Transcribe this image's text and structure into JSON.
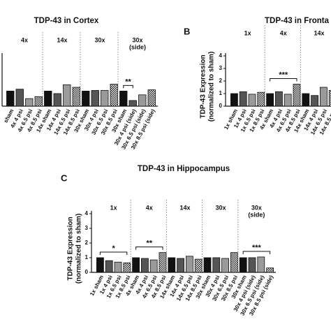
{
  "chart_data": [
    {
      "type": "bar",
      "title": "TDP-43 in Cortex",
      "fills": [
        "#111111",
        "#555555",
        "#9a9a9a",
        "checker"
      ],
      "ylim": [
        0,
        4
      ],
      "groups": [
        {
          "name": [
            "4x"
          ],
          "categories": [
            "sham",
            "4x 4 psi",
            "4x 6.5 psi",
            "4x 8.5 psi"
          ],
          "values": [
            1.2,
            1.35,
            0.6,
            0.75
          ]
        },
        {
          "name": [
            "14x"
          ],
          "categories": [
            "14x sham",
            "14x 4 psi",
            "14x 6.5 psi",
            "14x 8.5 psi"
          ],
          "values": [
            1.2,
            1.0,
            1.7,
            1.5
          ]
        },
        {
          "name": [
            "30x"
          ],
          "categories": [
            "30x sham",
            "30x 4 psi",
            "30x 6.5 psi",
            "30x 8.5 psi"
          ],
          "values": [
            1.2,
            1.25,
            1.25,
            1.75
          ]
        },
        {
          "name": [
            "30x",
            "(side)"
          ],
          "categories": [
            "30x sham",
            "30x 4 psi (side)",
            "30x 6.5 psi (side)",
            "30x 8.5 psi (side)"
          ],
          "values": [
            1.2,
            0.45,
            0.9,
            1.3
          ],
          "significance": {
            "text": "**",
            "between": [
              "30x sham",
              "30x 4 psi (side)"
            ]
          }
        }
      ]
    },
    {
      "type": "bar",
      "title": "TDP-43 in Fronta",
      "label": "B",
      "ylabel": [
        "TDP-43 Expression",
        "(normalized to sham)"
      ],
      "fills": [
        "#111111",
        "#555555",
        "#9a9a9a",
        "checker"
      ],
      "ylim": [
        0,
        4
      ],
      "yticks": [
        0,
        1,
        2,
        3,
        4
      ],
      "groups": [
        {
          "name": [
            "1x"
          ],
          "categories": [
            "1x sham",
            "1x 4 psi",
            "1x 6.5 psi",
            "1x 8.5 psi"
          ],
          "values": [
            1.0,
            1.15,
            0.95,
            1.1
          ]
        },
        {
          "name": [
            "4x"
          ],
          "categories": [
            "4x sham",
            "4x 4 psi",
            "4x 6.5 psi",
            "4x 8.5 psi"
          ],
          "values": [
            1.0,
            1.15,
            0.95,
            1.75
          ],
          "significance": {
            "text": "***",
            "between": [
              "4x sham",
              "4x 8.5 psi"
            ]
          }
        },
        {
          "name": [
            "14x"
          ],
          "categories": [
            "14x sham",
            "14x 4 psi",
            "14x 6.5 psi",
            "14x 8.5 psi"
          ],
          "values": [
            1.0,
            0.85,
            1.5,
            1.25
          ]
        }
      ]
    },
    {
      "type": "bar",
      "title": "TDP-43 in Hippocampus",
      "label": "C",
      "ylabel": [
        "TDP-43 Expression",
        "(normalized to sham)"
      ],
      "fills": [
        "#111111",
        "#555555",
        "#9a9a9a",
        "checker"
      ],
      "ylim": [
        0,
        4
      ],
      "yticks": [
        0,
        1,
        2,
        3,
        4
      ],
      "groups": [
        {
          "name": [
            "1x"
          ],
          "categories": [
            "1x sham",
            "1x 4 psi",
            "1x 6.5 psi",
            "1x 8.5 psi"
          ],
          "values": [
            1.0,
            0.8,
            0.7,
            0.65
          ],
          "significance": {
            "text": "*",
            "between": [
              "1x sham",
              "1x 8.5 psi"
            ]
          }
        },
        {
          "name": [
            "4x"
          ],
          "categories": [
            "4x sham",
            "4x 4 psi",
            "4x 6.5 psi",
            "4x 8.5 psi"
          ],
          "values": [
            1.0,
            0.95,
            0.85,
            1.35
          ],
          "significance": {
            "text": "**",
            "between": [
              "4x sham",
              "4x 8.5 psi"
            ]
          }
        },
        {
          "name": [
            "14x"
          ],
          "categories": [
            "14x sham",
            "14x 4 psi",
            "14x 6.5 psi",
            "14x 8.5 psi"
          ],
          "values": [
            1.0,
            0.95,
            1.1,
            0.9
          ]
        },
        {
          "name": [
            "30x"
          ],
          "categories": [
            "30x sham",
            "30x 4 psi",
            "30x 6.5 psi",
            "30x 8.5 psi"
          ],
          "values": [
            1.0,
            1.0,
            0.95,
            1.35
          ]
        },
        {
          "name": [
            "30x",
            "(side)"
          ],
          "categories": [
            "30x sham",
            "30x 4 psi (side)",
            "30x 6.5 psi (side)",
            "30x 8.5 psi (side)"
          ],
          "values": [
            1.0,
            1.0,
            1.05,
            0.3
          ],
          "significance": {
            "text": "***",
            "between": [
              "30x sham",
              "30x 8.5 psi (side)"
            ]
          }
        }
      ]
    }
  ]
}
